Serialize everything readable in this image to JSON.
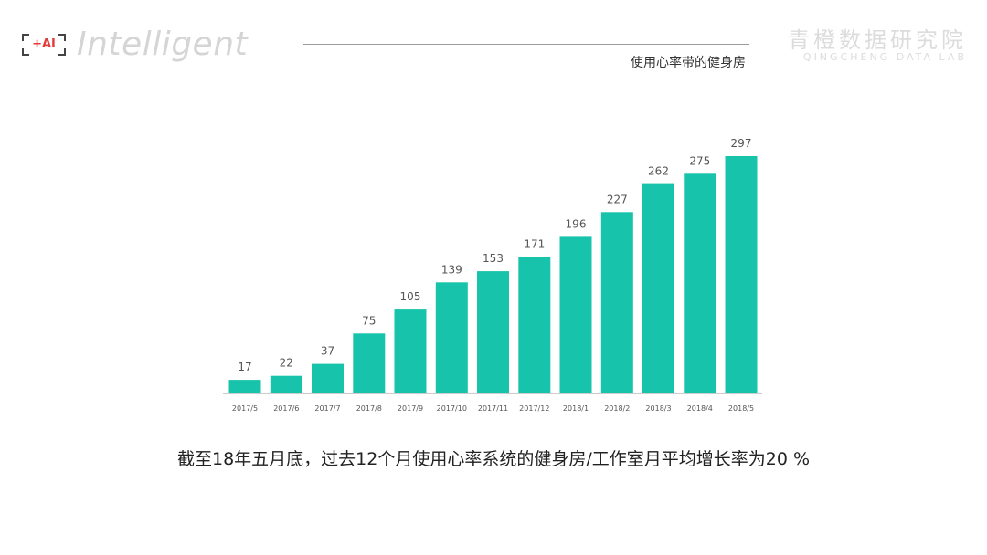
{
  "header": {
    "brand_mark": "+AI",
    "brand_word": "Intelligent",
    "subtitle": "使用心率带的健身房",
    "lab_cn": "青橙数据研究院",
    "lab_en": "QINGCHENG DATA LAB"
  },
  "colors": {
    "bar": "#17c3aa",
    "axis": "#cccccc",
    "label": "#555555",
    "tick": "#555555"
  },
  "chart_data": {
    "type": "bar",
    "categories": [
      "2017/5",
      "2017/6",
      "2017/7",
      "2017/8",
      "2017/9",
      "2017/10",
      "2017/11",
      "2017/12",
      "2018/1",
      "2018/2",
      "2018/3",
      "2018/4",
      "2018/5"
    ],
    "values": [
      17,
      22,
      37,
      75,
      105,
      139,
      153,
      171,
      196,
      227,
      262,
      275,
      297
    ],
    "title": "使用心率带的健身房",
    "xlabel": "",
    "ylabel": "",
    "ylim": [
      0,
      297
    ],
    "grid": false,
    "data_labels": true
  },
  "caption": "截至18年五月底，过去12个月使用心率系统的健身房/工作室月平均增长率为20 %"
}
